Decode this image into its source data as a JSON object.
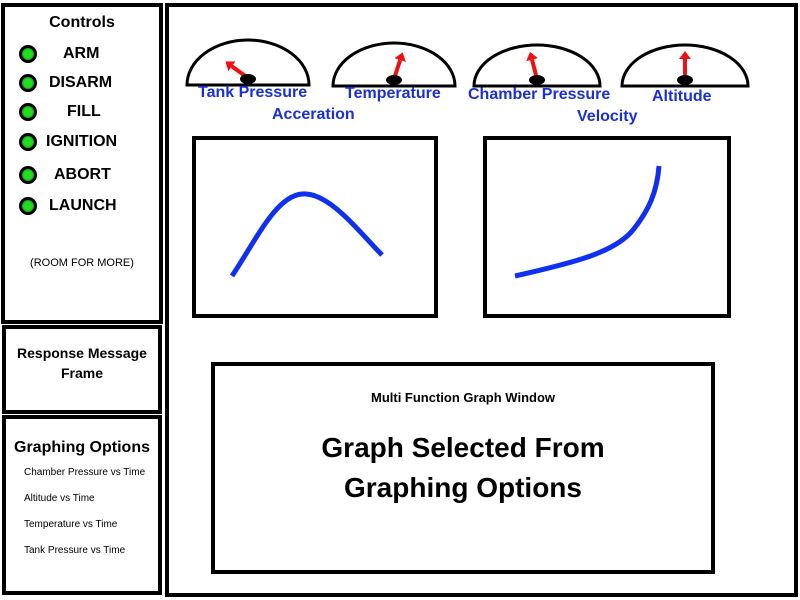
{
  "controls": {
    "title": "Controls",
    "items": [
      {
        "label": "ARM",
        "led": "green-led"
      },
      {
        "label": "DISARM",
        "led": "green-led"
      },
      {
        "label": "FILL",
        "led": "green-led"
      },
      {
        "label": "IGNITION",
        "led": "green-led"
      },
      {
        "label": "ABORT",
        "led": "green-led"
      },
      {
        "label": "LAUNCH",
        "led": "green-led"
      }
    ],
    "room_note": "(ROOM FOR MORE)"
  },
  "response": {
    "title": "Response Message Frame"
  },
  "graphing": {
    "title": "Graphing Options",
    "options": [
      "Chamber Pressure vs Time",
      "Altitude vs Time",
      "Temperature vs Time",
      "Tank Pressure vs Time"
    ]
  },
  "gauges": [
    {
      "label": "Tank Pressure",
      "needle_fraction": 0.2
    },
    {
      "label": "Temperature",
      "needle_fraction": 0.6
    },
    {
      "label": "Chamber Pressure",
      "needle_fraction": 0.42
    },
    {
      "label": "Altitude",
      "needle_fraction": 0.5
    }
  ],
  "graphs": [
    {
      "label": "Acceration"
    },
    {
      "label": "Velocity"
    }
  ],
  "multi": {
    "title": "Multi Function Graph Window",
    "body_line1": "Graph Selected From",
    "body_line2": "Graphing Options"
  },
  "colors": {
    "label_blue": "#1a2fd6",
    "curve_blue": "#1030f0",
    "led_green": "#22dd22",
    "needle_red": "#ee1111"
  }
}
